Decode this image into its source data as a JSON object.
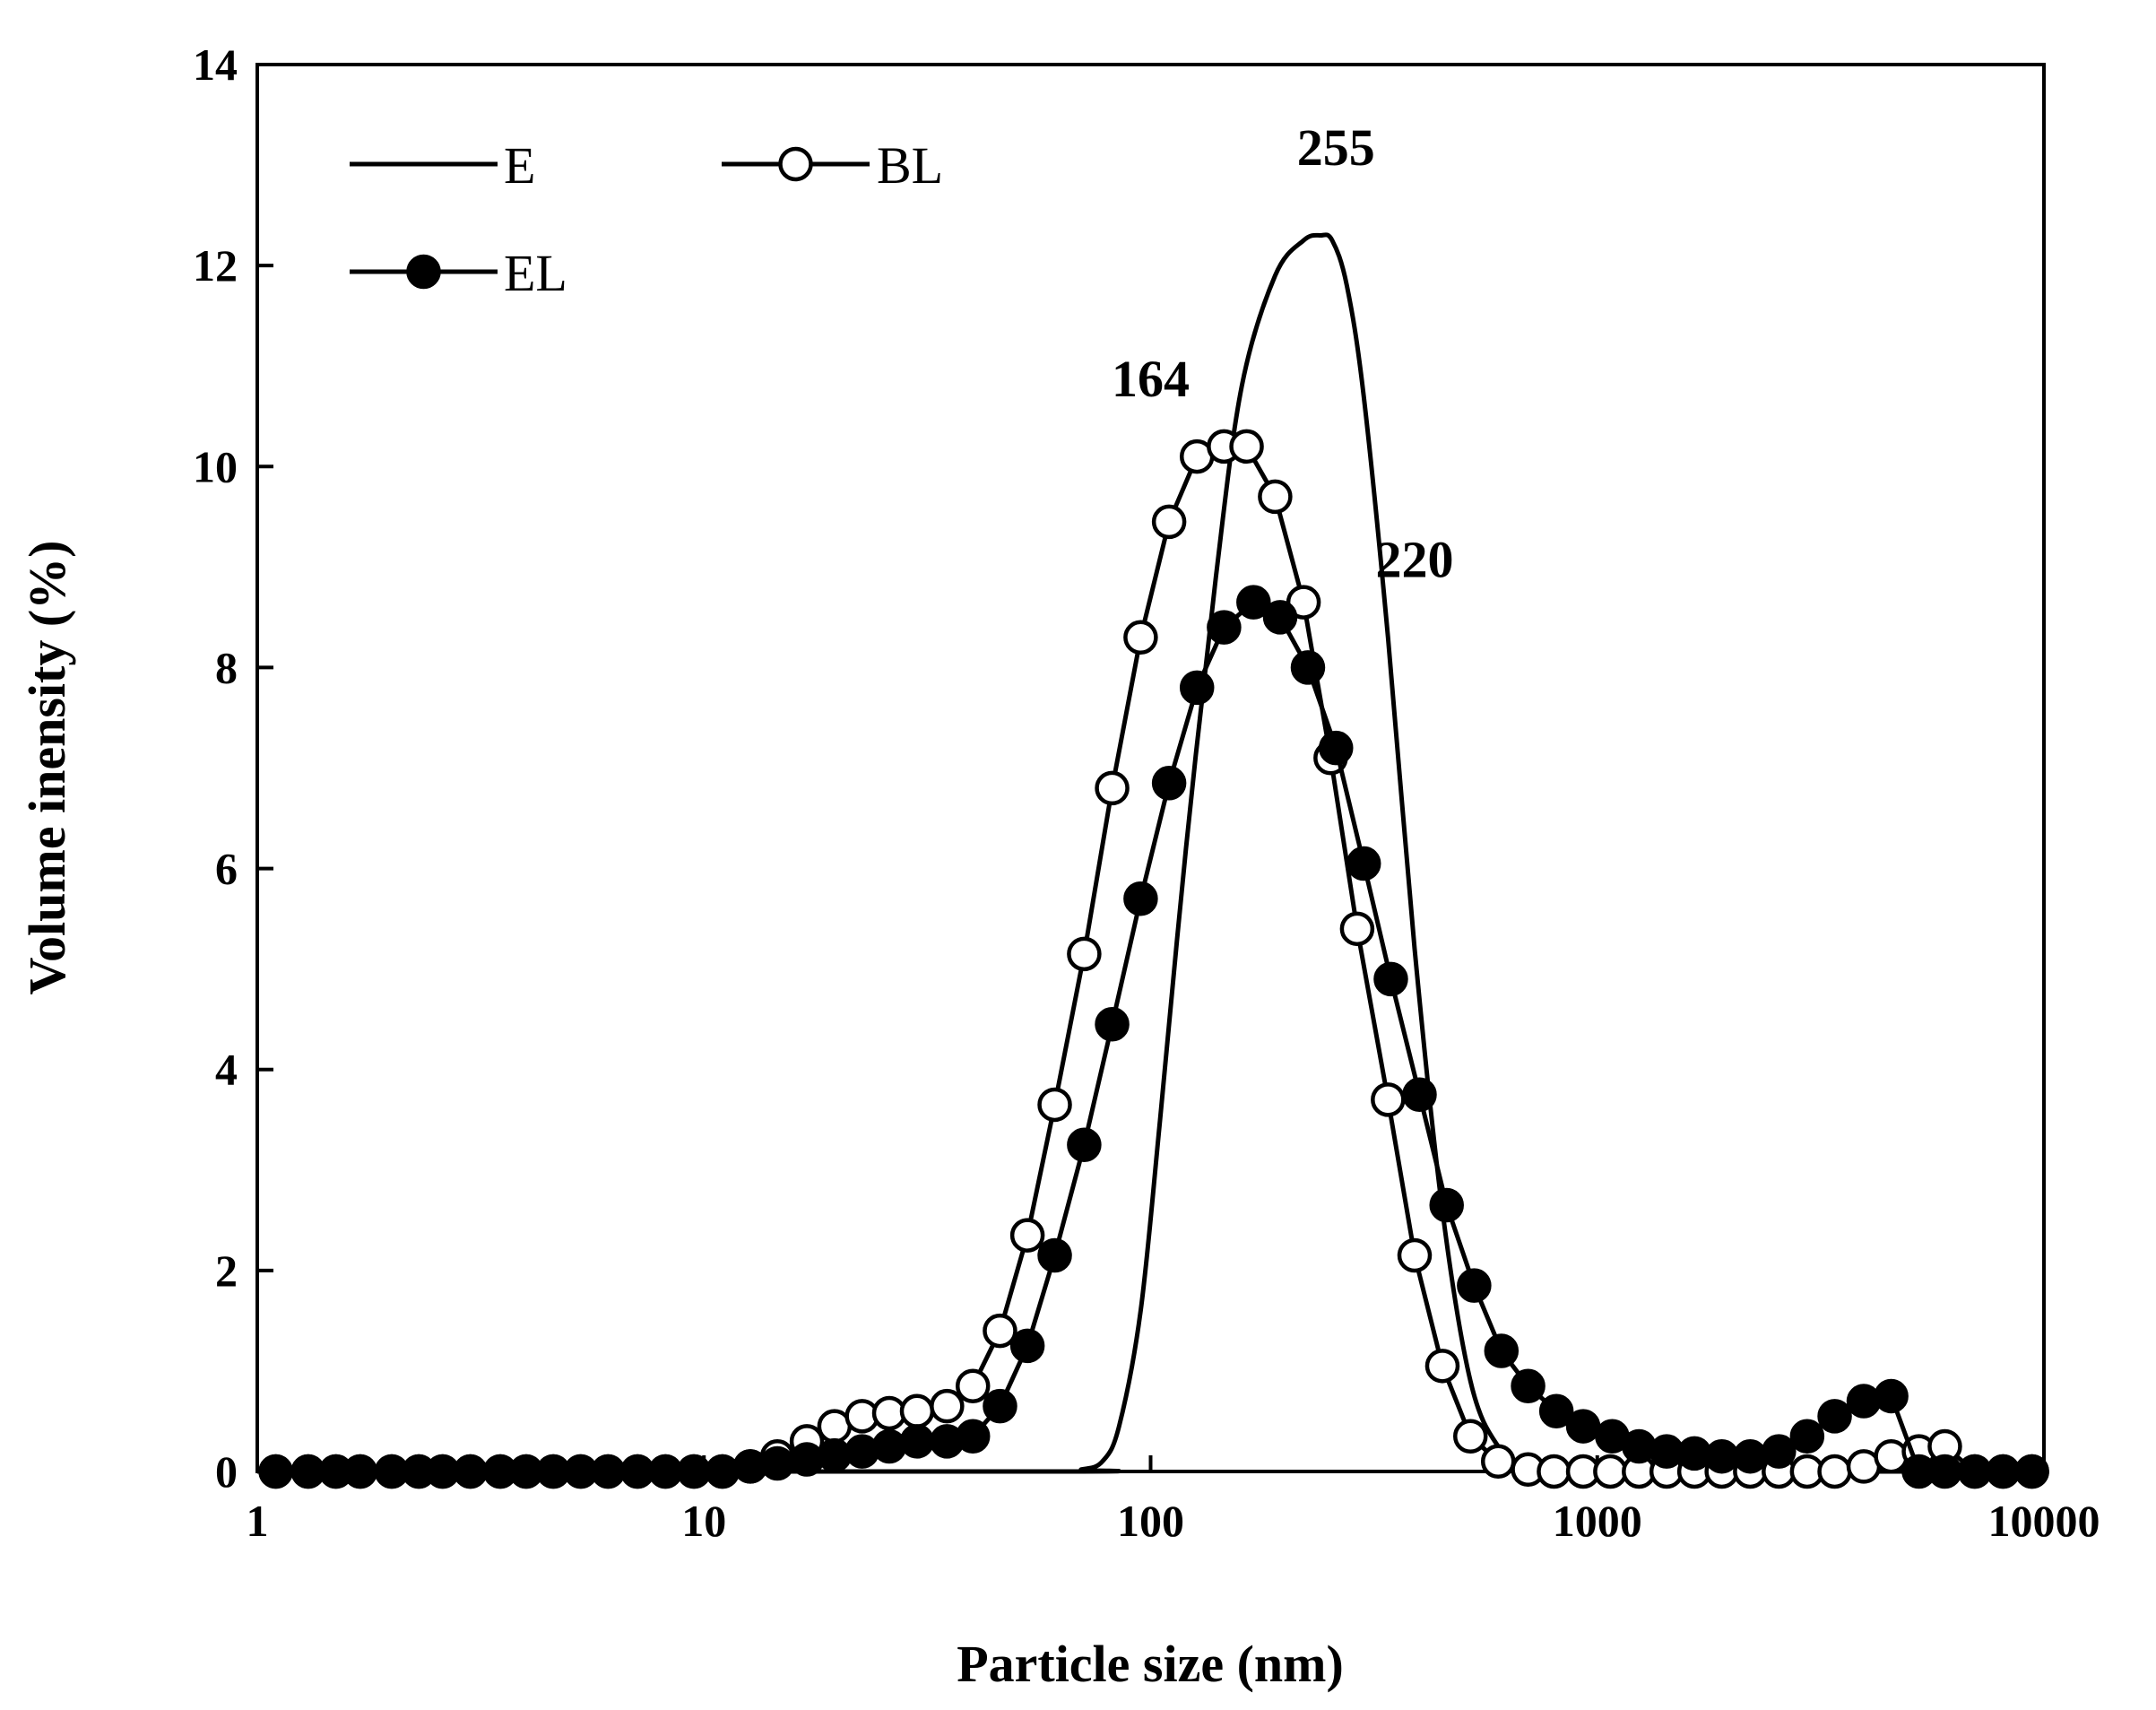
{
  "chart_data": {
    "type": "line",
    "xscale": "log",
    "xlim": [
      1,
      10000
    ],
    "ylim": [
      0,
      14
    ],
    "xticks": [
      "1",
      "10",
      "100",
      "1000",
      "10000"
    ],
    "yticks": [
      "0",
      "2",
      "4",
      "6",
      "8",
      "10",
      "12",
      "14"
    ],
    "xlabel": "Particle size (nm)",
    "ylabel": "Volume inensity (%)",
    "grid": false,
    "legend_position": "top-left",
    "series": [
      {
        "name": "E",
        "marker": "none",
        "color": "#000000",
        "x": [
          1,
          60,
          70,
          78,
          85,
          95,
          105,
          120,
          140,
          160,
          190,
          220,
          240,
          255,
          275,
          300,
          340,
          390,
          450,
          520,
          600,
          700,
          800,
          900,
          10000
        ],
        "y": [
          0,
          0,
          0.02,
          0.1,
          0.45,
          1.6,
          3.5,
          6.2,
          8.9,
          10.8,
          11.9,
          12.25,
          12.3,
          12.25,
          11.8,
          10.7,
          8.3,
          5.2,
          2.6,
          0.9,
          0.25,
          0.05,
          0.01,
          0,
          0
        ]
      },
      {
        "name": "BL",
        "marker": "open-circle",
        "color": "#000000",
        "x": [
          1.1,
          1.3,
          1.5,
          1.7,
          2.0,
          2.3,
          2.6,
          3.0,
          3.5,
          4.0,
          4.6,
          5.3,
          6.1,
          7.1,
          8.2,
          9.5,
          11,
          12.7,
          14.6,
          17,
          19.6,
          22.6,
          26,
          30,
          35,
          40,
          46,
          53,
          61,
          71,
          82,
          95,
          110,
          127,
          146,
          164,
          190,
          220,
          253,
          290,
          340,
          390,
          450,
          520,
          600,
          700,
          800,
          930,
          1070,
          1240,
          1430,
          1650,
          1900,
          2200,
          2550,
          2950,
          3400,
          3950,
          4550,
          5250,
          6000,
          7000,
          8100,
          9400
        ],
        "y": [
          0,
          0,
          0,
          0,
          0,
          0,
          0,
          0,
          0,
          0,
          0,
          0,
          0,
          0,
          0,
          0,
          0,
          0.05,
          0.15,
          0.3,
          0.45,
          0.55,
          0.58,
          0.6,
          0.65,
          0.85,
          1.4,
          2.35,
          3.65,
          5.15,
          6.8,
          8.3,
          9.45,
          10.1,
          10.2,
          10.2,
          9.7,
          8.65,
          7.1,
          5.4,
          3.7,
          2.15,
          1.05,
          0.35,
          0.1,
          0.02,
          0,
          0,
          0,
          0,
          0,
          0,
          0,
          0,
          0,
          0,
          0,
          0.05,
          0.15,
          0.2,
          0.25,
          0,
          0,
          0
        ]
      },
      {
        "name": "EL",
        "marker": "filled-circle",
        "color": "#000000",
        "x": [
          1.1,
          1.3,
          1.5,
          1.7,
          2.0,
          2.3,
          2.6,
          3.0,
          3.5,
          4.0,
          4.6,
          5.3,
          6.1,
          7.1,
          8.2,
          9.5,
          11,
          12.7,
          14.6,
          17,
          19.6,
          22.6,
          26,
          30,
          35,
          40,
          46,
          53,
          61,
          71,
          82,
          95,
          110,
          127,
          146,
          170,
          195,
          225,
          260,
          300,
          345,
          400,
          460,
          530,
          610,
          700,
          810,
          930,
          1080,
          1240,
          1430,
          1650,
          1900,
          2200,
          2550,
          2950,
          3400,
          3950,
          4550,
          5250,
          6000,
          7000,
          8100,
          9400
        ],
        "y": [
          0,
          0,
          0,
          0,
          0,
          0,
          0,
          0,
          0,
          0,
          0,
          0,
          0,
          0,
          0,
          0,
          0,
          0.05,
          0.08,
          0.12,
          0.16,
          0.2,
          0.25,
          0.3,
          0.3,
          0.35,
          0.65,
          1.25,
          2.15,
          3.25,
          4.45,
          5.7,
          6.85,
          7.8,
          8.4,
          8.65,
          8.5,
          8.0,
          7.2,
          6.05,
          4.9,
          3.75,
          2.65,
          1.85,
          1.2,
          0.85,
          0.6,
          0.45,
          0.35,
          0.25,
          0.2,
          0.18,
          0.15,
          0.15,
          0.2,
          0.35,
          0.55,
          0.7,
          0.75,
          0,
          0,
          0,
          0,
          0
        ]
      }
    ],
    "annotations": [
      {
        "text": "255",
        "x": 260,
        "y": 13.0,
        "bold": true
      },
      {
        "text": "164",
        "x": 100,
        "y": 10.7,
        "bold": true
      },
      {
        "text": "220",
        "x": 390,
        "y": 8.9,
        "bold": true
      }
    ]
  }
}
